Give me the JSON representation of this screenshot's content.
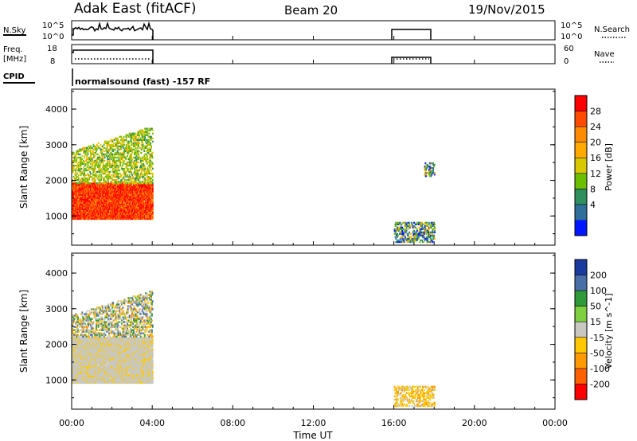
{
  "header": {
    "station": "Adak East (fitACF)",
    "beam": "Beam 20",
    "date": "19/Nov/2015"
  },
  "status_panels": {
    "nsky": {
      "label": "N.Sky",
      "tick_top": "10^5",
      "tick_bottom": "10^0",
      "right_tick_top": "10^5",
      "right_tick_bottom": "10^0",
      "right_label": "N.Search"
    },
    "freq": {
      "label_line1": "Freq.",
      "label_line2": "[MHz]",
      "tick_top": "18",
      "tick_bottom": "8",
      "right_tick_top": "60",
      "right_tick_bottom": "0",
      "right_label": "Nave"
    },
    "cpid": {
      "label": "CPID",
      "text": "normalsound (fast) -157 RF"
    },
    "active_intervals": [
      [
        "00:00",
        "04:00"
      ],
      [
        "16:00",
        "18:00"
      ]
    ]
  },
  "chart_data": [
    {
      "type": "heatmap",
      "name": "power-panel",
      "ylabel": "Slant Range [km]",
      "yticks": [
        "1000",
        "2000",
        "3000",
        "4000"
      ],
      "ylim": [
        180,
        4560
      ],
      "xlim": [
        "00:00",
        "24:00"
      ],
      "colorbar": {
        "label": "Power [dB]",
        "ticks": [
          "28",
          "24",
          "20",
          "16",
          "12",
          "8",
          "4"
        ],
        "colors": [
          "#ff0000",
          "#ff4b00",
          "#ff8c00",
          "#ffaa00",
          "#d8c800",
          "#6cbe00",
          "#2f8f5e",
          "#2f6f9a",
          "#0016ff"
        ]
      },
      "regions": [
        {
          "t": [
            "00:00",
            "04:00"
          ],
          "range_km": [
            900,
            1900
          ],
          "level": "high"
        },
        {
          "t": [
            "00:00",
            "04:00"
          ],
          "range_km": [
            1900,
            3500
          ],
          "level": "medium"
        },
        {
          "t": [
            "16:00",
            "18:00"
          ],
          "range_km": [
            250,
            800
          ],
          "level": "low"
        },
        {
          "t": [
            "17:30",
            "18:00"
          ],
          "range_km": [
            2100,
            2500
          ],
          "level": "low"
        }
      ]
    },
    {
      "type": "heatmap",
      "name": "velocity-panel",
      "ylabel": "Slant Range [km]",
      "yticks": [
        "1000",
        "2000",
        "3000",
        "4000"
      ],
      "ylim": [
        180,
        4560
      ],
      "xlim": [
        "00:00",
        "24:00"
      ],
      "xticks": [
        "00:00",
        "04:00",
        "08:00",
        "12:00",
        "16:00",
        "20:00",
        "00:00"
      ],
      "xlabel": "Time UT",
      "colorbar": {
        "label": "Velocity [m s^-1]",
        "ticks": [
          "200",
          "100",
          "50",
          "15",
          "-15",
          "-50",
          "-100",
          "-200"
        ],
        "colors": [
          "#1a3a9e",
          "#4a6fa8",
          "#2f9a3a",
          "#7ed040",
          "#c8c8c0",
          "#ffc800",
          "#ff9a00",
          "#ff6000",
          "#ff0000"
        ]
      },
      "regions": [
        {
          "t": [
            "00:00",
            "04:00"
          ],
          "range_km": [
            900,
            2200
          ],
          "level": "near-zero"
        },
        {
          "t": [
            "00:00",
            "04:00"
          ],
          "range_km": [
            2200,
            3500
          ],
          "level": "mixed"
        },
        {
          "t": [
            "16:00",
            "18:00"
          ],
          "range_km": [
            250,
            800
          ],
          "level": "slightly-negative"
        }
      ]
    }
  ]
}
